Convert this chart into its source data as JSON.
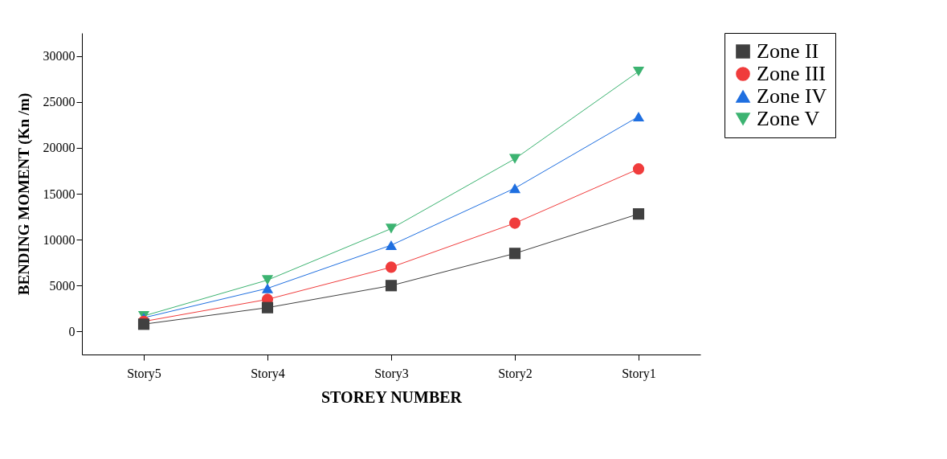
{
  "chart_data": {
    "type": "line",
    "xlabel": "STOREY NUMBER",
    "ylabel": "BENDING MOMENT (Kn /m)",
    "categories": [
      "Story5",
      "Story4",
      "Story3",
      "Story2",
      "Story1"
    ],
    "series": [
      {
        "name": "Zone II",
        "color": "#404040",
        "marker": "square",
        "values": [
          800,
          2600,
          5000,
          8500,
          12800
        ]
      },
      {
        "name": "Zone III",
        "color": "#f03c3c",
        "marker": "circle",
        "values": [
          1100,
          3500,
          7000,
          11800,
          17700
        ]
      },
      {
        "name": "Zone IV",
        "color": "#1f6fe0",
        "marker": "triangle",
        "values": [
          1500,
          4700,
          9400,
          15600,
          23400
        ]
      },
      {
        "name": "Zone V",
        "color": "#3cb371",
        "marker": "triangle-down",
        "values": [
          1700,
          5600,
          11200,
          18800,
          28300
        ]
      }
    ],
    "ylim": [
      -2500,
      32500
    ],
    "yticks": [
      0,
      5000,
      10000,
      15000,
      20000,
      25000,
      30000
    ],
    "grid": false,
    "legend": "right",
    "line_style": "solid"
  }
}
